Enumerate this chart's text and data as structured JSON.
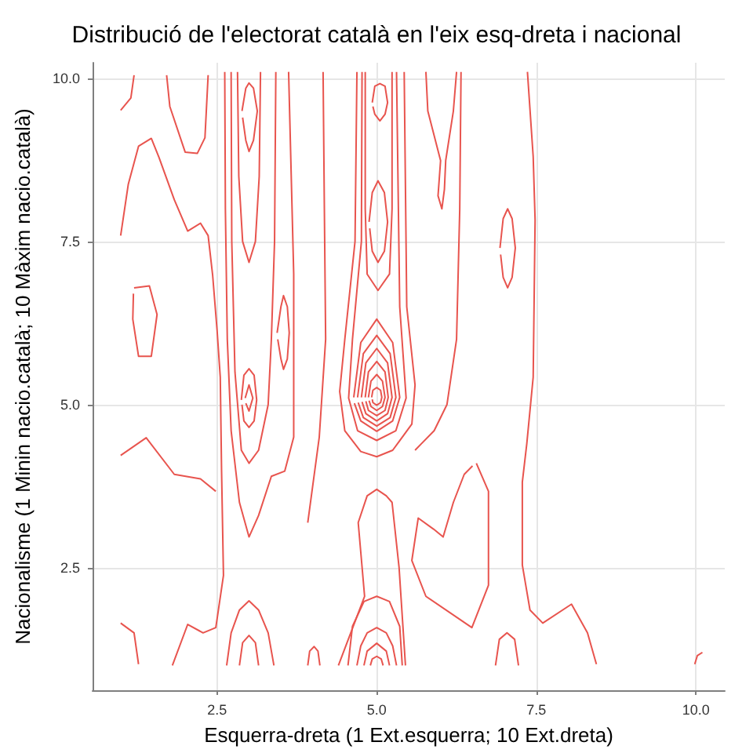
{
  "chart_data": {
    "type": "line",
    "title": "Distribució de l'electorat català en l'eix esq-dreta i nacional",
    "xlabel": "Esquerra-dreta (1 Ext.esquerra; 10 Ext.dreta)",
    "ylabel": "Nacionalisme (1 Minin nacio.català; 10 Màxim nacio.català)",
    "xlim": [
      0.55,
      10.45
    ],
    "ylim": [
      0.62,
      10.24
    ],
    "xticks": [
      2.5,
      {
        "value": 5,
        "label": "5.0"
      },
      7.5,
      {
        "value": 10,
        "label": "10.0"
      }
    ],
    "yticks": [
      2.5,
      {
        "value": 5,
        "label": "5.0"
      },
      7.5,
      {
        "value": 10,
        "label": "10.0"
      }
    ],
    "grid": true,
    "marker": "none",
    "series": [
      {
        "color": "#e8544e",
        "x": [
          0.99,
          1.11,
          1.27,
          1.47,
          1.59,
          1.83,
          2.04,
          2.24,
          2.36,
          2.43,
          2.5,
          2.55,
          2.57,
          2.6,
          2.48,
          2.28,
          2.04,
          1.8
        ],
        "values": [
          7.59,
          8.38,
          8.96,
          9.08,
          8.79,
          8.14,
          7.66,
          7.78,
          7.59,
          6.99,
          6.14,
          5.42,
          4.0,
          2.38,
          1.58,
          1.5,
          1.63,
          1.0
        ]
      },
      {
        "color": "#e8544e",
        "x": [
          0.99,
          1.39,
          1.83,
          2.24,
          2.48
        ],
        "values": [
          4.22,
          4.49,
          3.93,
          3.86,
          3.67
        ]
      },
      {
        "color": "#e8544e",
        "x": [
          1.71,
          1.76,
          2.0,
          2.19,
          2.31,
          2.36
        ],
        "values": [
          10.05,
          9.57,
          8.87,
          8.85,
          9.09,
          10.05
        ]
      },
      {
        "color": "#e8544e",
        "x": [
          0.99,
          1.15,
          1.2
        ],
        "values": [
          9.51,
          9.7,
          10.05
        ]
      },
      {
        "color": "#e8544e",
        "x": [
          1.2,
          1.44,
          1.56,
          1.47,
          1.27,
          1.18,
          1.19
        ],
        "values": [
          6.79,
          6.82,
          6.38,
          5.74,
          5.74,
          6.31,
          6.7
        ]
      },
      {
        "color": "#e8544e",
        "x": [
          0.99,
          1.2,
          1.27
        ],
        "values": [
          1.65,
          1.5,
          1.02
        ]
      },
      {
        "color": "#e8544e",
        "x": [
          2.62,
          2.63,
          2.66,
          2.72,
          2.85,
          3.0,
          3.15,
          3.35,
          3.56,
          3.7,
          3.7,
          3.62
        ],
        "values": [
          10.1,
          8.0,
          6.0,
          4.6,
          3.5,
          2.97,
          3.3,
          3.9,
          3.98,
          4.5,
          7.0,
          10.1
        ]
      },
      {
        "color": "#e8544e",
        "x": [
          2.72,
          2.73,
          2.78,
          2.88,
          3.0,
          3.15,
          3.3,
          3.35,
          3.4,
          3.42
        ],
        "values": [
          10.1,
          7.5,
          5.5,
          4.3,
          4.1,
          4.3,
          5.0,
          6.0,
          7.5,
          10.1
        ]
      },
      {
        "color": "#e8544e",
        "x": [
          2.82,
          2.84,
          2.9,
          3.0,
          3.1,
          3.16,
          3.18
        ],
        "values": [
          10.1,
          8.5,
          7.5,
          7.18,
          7.5,
          8.5,
          10.1
        ]
      },
      {
        "color": "#e8544e",
        "x": [
          2.88,
          2.92,
          3.0,
          3.08,
          3.12,
          3.08,
          3.0,
          2.92,
          2.89
        ],
        "values": [
          5.07,
          5.45,
          5.55,
          5.45,
          5.07,
          4.75,
          4.65,
          4.75,
          5.0
        ]
      },
      {
        "color": "#e8544e",
        "x": [
          2.94,
          3.0,
          3.06,
          3.0,
          2.95
        ],
        "values": [
          5.1,
          5.3,
          5.1,
          4.9,
          5.02
        ]
      },
      {
        "color": "#e8544e",
        "x": [
          2.89,
          2.95,
          3.0,
          3.07,
          3.13,
          3.07,
          3.0,
          2.95,
          2.9
        ],
        "values": [
          9.5,
          9.85,
          9.93,
          9.85,
          9.5,
          9.05,
          8.88,
          9.05,
          9.4
        ]
      },
      {
        "color": "#e8544e",
        "x": [
          3.44,
          3.5,
          3.54,
          3.6,
          3.63,
          3.6,
          3.54,
          3.5,
          3.45
        ],
        "values": [
          6.1,
          6.5,
          6.67,
          6.5,
          6.1,
          5.7,
          5.54,
          5.7,
          6.0
        ]
      },
      {
        "color": "#e8544e",
        "x": [
          2.65,
          2.72,
          2.85,
          3.0,
          3.15,
          3.3,
          3.39
        ],
        "values": [
          1.0,
          1.5,
          1.85,
          1.99,
          1.85,
          1.5,
          1.0
        ]
      },
      {
        "color": "#e8544e",
        "x": [
          2.85,
          2.9,
          3.0,
          3.1,
          3.15
        ],
        "values": [
          1.0,
          1.35,
          1.46,
          1.35,
          1.0
        ]
      },
      {
        "color": "#e8544e",
        "x": [
          4.16,
          4.18,
          4.2,
          4.1,
          3.92
        ],
        "values": [
          10.1,
          8.0,
          6.0,
          4.5,
          3.19
        ]
      },
      {
        "color": "#e8544e",
        "x": [
          6.32,
          6.3,
          6.25,
          6.1,
          5.9,
          5.7,
          5.6
        ],
        "values": [
          10.1,
          8.0,
          6.0,
          5.0,
          4.6,
          4.4,
          4.3
        ]
      },
      {
        "color": "#e8544e",
        "x": [
          4.69,
          4.66,
          4.5,
          4.42,
          4.5,
          4.75,
          5.0,
          5.25,
          5.55,
          5.6,
          5.47,
          5.43
        ],
        "values": [
          10.1,
          7.5,
          6.0,
          5.2,
          4.6,
          4.28,
          4.2,
          4.3,
          4.7,
          5.3,
          6.5,
          10.1
        ]
      },
      {
        "color": "#e8544e",
        "x": [
          4.77,
          4.76,
          4.62,
          4.56,
          4.7,
          5.0,
          5.3,
          5.46,
          5.36,
          5.31
        ],
        "values": [
          10.1,
          7.5,
          6.0,
          5.1,
          4.6,
          4.45,
          4.6,
          5.1,
          6.5,
          10.1
        ]
      },
      {
        "color": "#e8544e",
        "x": [
          4.92,
          4.94,
          5,
          5.06,
          5.08,
          5.06,
          5,
          4.94,
          4.93
        ],
        "values": [
          5.11,
          5.22,
          5.26,
          5.22,
          5.11,
          5.03,
          4.99,
          5.03,
          5.08
        ]
      },
      {
        "color": "#e8544e",
        "x": [
          4.87,
          4.91,
          5,
          5.09,
          5.13,
          5.09,
          5,
          4.91,
          4.88
        ],
        "values": [
          5.11,
          5.36,
          5.46,
          5.36,
          5.11,
          4.97,
          4.91,
          4.97,
          5.06
        ]
      },
      {
        "color": "#e8544e",
        "x": [
          4.82,
          4.87,
          5,
          5.13,
          5.18,
          5.13,
          5,
          4.87,
          4.83
        ],
        "values": [
          5.11,
          5.5,
          5.66,
          5.5,
          5.11,
          4.91,
          4.83,
          4.91,
          5.05
        ]
      },
      {
        "color": "#e8544e",
        "x": [
          4.76,
          4.83,
          5,
          5.17,
          5.24,
          5.17,
          5,
          4.83,
          4.77
        ],
        "values": [
          5.11,
          5.64,
          5.86,
          5.64,
          5.11,
          4.86,
          4.75,
          4.86,
          5.04
        ]
      },
      {
        "color": "#e8544e",
        "x": [
          4.7,
          4.79,
          5,
          5.21,
          5.3,
          5.21,
          5,
          4.79,
          4.71
        ],
        "values": [
          5.11,
          5.78,
          6.06,
          5.78,
          5.11,
          4.8,
          4.67,
          4.8,
          5.03
        ]
      },
      {
        "color": "#e8544e",
        "x": [
          4.64,
          4.75,
          5,
          5.25,
          5.36,
          5.25,
          5,
          4.75,
          4.65
        ],
        "values": [
          5.11,
          5.95,
          6.31,
          5.95,
          5.11,
          4.75,
          4.59,
          4.75,
          5.02
        ]
      },
      {
        "color": "#e8544e",
        "x": [
          4.88,
          4.93,
          5.02,
          5.12,
          5.17,
          5.12,
          5.02,
          4.93,
          4.89
        ],
        "values": [
          7.8,
          8.25,
          8.43,
          8.25,
          7.8,
          7.35,
          7.18,
          7.35,
          7.7
        ]
      },
      {
        "color": "#e8544e",
        "x": [
          4.82,
          4.82,
          4.85,
          5.02,
          5.2,
          5.24,
          5.24
        ],
        "values": [
          10.1,
          8.0,
          7.0,
          6.75,
          7.0,
          8.0,
          10.1
        ]
      },
      {
        "color": "#e8544e",
        "x": [
          4.93,
          4.97,
          5.05,
          5.13,
          5.17,
          5.13,
          5.05,
          4.97,
          4.94
        ],
        "values": [
          9.63,
          9.88,
          9.92,
          9.88,
          9.63,
          9.45,
          9.35,
          9.45,
          9.57
        ]
      },
      {
        "color": "#e8544e",
        "x": [
          4.4,
          4.81,
          4.71,
          4.85,
          5.0,
          5.15,
          5.24,
          5.35,
          5.45
        ],
        "values": [
          1.0,
          2.06,
          3.19,
          3.6,
          3.7,
          3.6,
          3.5,
          2.5,
          1.0
        ]
      },
      {
        "color": "#e8544e",
        "x": [
          4.55,
          4.62,
          4.8,
          5.0,
          5.2,
          5.36,
          5.4
        ],
        "values": [
          1.0,
          1.6,
          1.98,
          2.06,
          1.98,
          1.6,
          1.0
        ]
      },
      {
        "color": "#e8544e",
        "x": [
          4.69,
          4.75,
          4.85,
          5.0,
          5.15,
          5.25,
          5.31
        ],
        "values": [
          1.0,
          1.3,
          1.5,
          1.58,
          1.5,
          1.3,
          1.0
        ]
      },
      {
        "color": "#e8544e",
        "x": [
          4.8,
          4.85,
          5.0,
          5.15,
          5.2
        ],
        "values": [
          1.0,
          1.22,
          1.34,
          1.22,
          1.0
        ]
      },
      {
        "color": "#e8544e",
        "x": [
          4.9,
          4.93,
          5.0,
          5.07,
          5.1
        ],
        "values": [
          1.0,
          1.1,
          1.14,
          1.1,
          1.0
        ]
      },
      {
        "color": "#e8544e",
        "x": [
          3.92,
          3.95,
          4.02,
          4.08,
          4.11
        ],
        "values": [
          1.0,
          1.22,
          1.29,
          1.22,
          1.0
        ]
      },
      {
        "color": "#e8544e",
        "x": [
          5.77,
          5.8,
          6.0,
          5.96,
          6.02,
          6.06,
          6.08,
          6.2,
          6.25
        ],
        "values": [
          10.1,
          9.5,
          8.74,
          8.2,
          8.0,
          8.3,
          8.74,
          9.5,
          10.1
        ]
      },
      {
        "color": "#e8544e",
        "x": [
          6.93,
          6.98,
          7.05,
          7.12,
          7.17,
          7.12,
          7.05,
          6.98,
          6.94
        ],
        "values": [
          7.4,
          7.85,
          8.0,
          7.85,
          7.4,
          6.95,
          6.79,
          6.95,
          7.3
        ]
      },
      {
        "color": "#e8544e",
        "x": [
          6.56,
          6.75,
          6.75,
          6.49,
          5.77,
          5.55,
          5.65,
          5.89,
          6.04,
          6.2,
          6.37,
          6.5
        ],
        "values": [
          4.1,
          3.67,
          2.23,
          1.58,
          2.06,
          2.61,
          3.26,
          3.09,
          2.97,
          3.5,
          3.93,
          4.06
        ]
      },
      {
        "color": "#e8544e",
        "x": [
          6.86,
          6.92,
          7.04,
          7.16,
          7.22
        ],
        "values": [
          1.0,
          1.4,
          1.5,
          1.4,
          1.0
        ]
      },
      {
        "color": "#e8544e",
        "x": [
          7.36,
          7.45,
          7.48,
          7.45,
          7.35,
          7.28,
          7.28,
          7.4,
          7.6,
          8.05,
          8.3,
          8.44
        ],
        "values": [
          10.1,
          8.8,
          7.83,
          5.42,
          4.4,
          3.81,
          2.54,
          1.85,
          1.65,
          1.94,
          1.5,
          1.02
        ]
      },
      {
        "color": "#e8544e",
        "x": [
          9.98,
          10.02,
          10.1
        ],
        "values": [
          1.02,
          1.15,
          1.2
        ]
      }
    ]
  }
}
